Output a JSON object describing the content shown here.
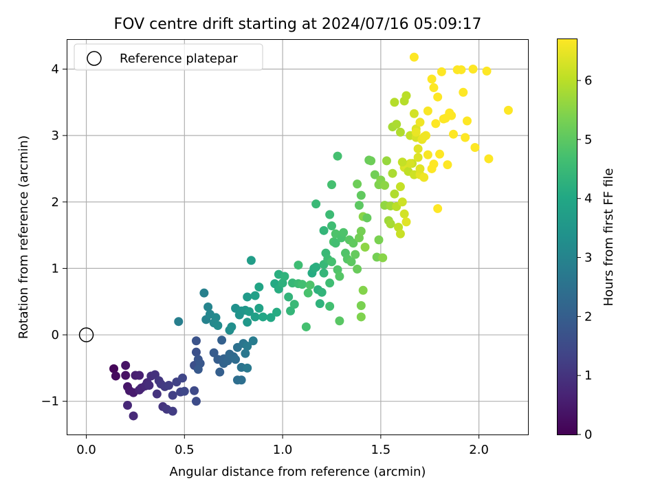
{
  "chart_data": {
    "type": "scatter",
    "title": "FOV centre drift starting at 2024/07/16 05:09:17",
    "xlabel": "Angular distance from reference (arcmin)",
    "ylabel": "Rotation from reference (arcmin)",
    "xlim": [
      -0.1,
      2.25
    ],
    "ylim": [
      -1.5,
      4.45
    ],
    "xticks": [
      0.0,
      0.5,
      1.0,
      1.5,
      2.0
    ],
    "xtick_labels": [
      "0.0",
      "0.5",
      "1.0",
      "1.5",
      "2.0"
    ],
    "yticks": [
      -1,
      0,
      1,
      2,
      3,
      4
    ],
    "ytick_labels": [
      "−1",
      "0",
      "1",
      "2",
      "3",
      "4"
    ],
    "grid": true,
    "legend": {
      "position": "top-left",
      "entries": [
        "Reference platepar"
      ]
    },
    "colorbar": {
      "label": "Hours from first FF file",
      "colormap": "viridis",
      "range": [
        0,
        6.7
      ],
      "ticks": [
        0,
        1,
        2,
        3,
        4,
        5,
        6
      ],
      "tick_labels": [
        "0",
        "1",
        "2",
        "3",
        "4",
        "5",
        "6"
      ]
    },
    "reference_point": {
      "x": 0.0,
      "y": 0.0
    },
    "series": [
      {
        "points": [
          [
            0.14,
            -0.51,
            0.1
          ],
          [
            0.15,
            -0.62,
            0.2
          ],
          [
            0.2,
            -0.61,
            0.3
          ],
          [
            0.2,
            -0.46,
            0.35
          ],
          [
            0.21,
            -0.78,
            0.4
          ],
          [
            0.22,
            -0.84,
            0.45
          ],
          [
            0.24,
            -0.87,
            0.5
          ],
          [
            0.25,
            -0.61,
            0.55
          ],
          [
            0.27,
            -0.61,
            0.6
          ],
          [
            0.27,
            -0.83,
            0.65
          ],
          [
            0.28,
            -0.8,
            0.7
          ],
          [
            0.3,
            -0.77,
            0.75
          ],
          [
            0.31,
            -0.72,
            0.8
          ],
          [
            0.32,
            -0.76,
            0.85
          ],
          [
            0.33,
            -0.62,
            0.9
          ],
          [
            0.35,
            -0.6,
            0.95
          ],
          [
            0.36,
            -0.89,
            1.0
          ],
          [
            0.37,
            -0.69,
            1.05
          ],
          [
            0.38,
            -0.74,
            1.1
          ],
          [
            0.4,
            -0.78,
            1.15
          ],
          [
            0.42,
            -0.76,
            1.2
          ],
          [
            0.44,
            -0.91,
            1.25
          ],
          [
            0.46,
            -0.71,
            1.3
          ],
          [
            0.48,
            -0.86,
            1.35
          ],
          [
            0.49,
            -0.65,
            1.4
          ],
          [
            0.5,
            -0.85,
            1.45
          ],
          [
            0.55,
            -0.84,
            1.5
          ],
          [
            0.56,
            -1.0,
            1.55
          ],
          [
            0.39,
            -1.08,
            1.0
          ],
          [
            0.41,
            -1.12,
            1.1
          ],
          [
            0.44,
            -1.15,
            1.2
          ],
          [
            0.21,
            -1.06,
            0.75
          ],
          [
            0.24,
            -1.22,
            0.8
          ],
          [
            0.55,
            -0.46,
            1.6
          ],
          [
            0.56,
            -0.26,
            1.65
          ],
          [
            0.56,
            -0.09,
            1.7
          ],
          [
            0.57,
            -0.37,
            1.75
          ],
          [
            0.58,
            -0.43,
            1.8
          ],
          [
            0.57,
            -0.52,
            1.85
          ],
          [
            0.65,
            -0.27,
            1.9
          ],
          [
            0.67,
            -0.37,
            1.95
          ],
          [
            0.68,
            -0.56,
            2.0
          ],
          [
            0.69,
            -0.08,
            2.05
          ],
          [
            0.7,
            -0.36,
            2.1
          ],
          [
            0.7,
            -0.43,
            2.15
          ],
          [
            0.72,
            -0.39,
            2.2
          ],
          [
            0.73,
            -0.29,
            2.25
          ],
          [
            0.75,
            -0.33,
            2.3
          ],
          [
            0.76,
            -0.37,
            2.35
          ],
          [
            0.77,
            -0.68,
            2.4
          ],
          [
            0.79,
            -0.68,
            2.45
          ],
          [
            0.77,
            -0.19,
            2.5
          ],
          [
            0.79,
            -0.49,
            2.55
          ],
          [
            0.8,
            -0.13,
            2.6
          ],
          [
            0.81,
            -0.28,
            2.65
          ],
          [
            0.82,
            -0.5,
            2.7
          ],
          [
            0.82,
            -0.17,
            2.75
          ],
          [
            0.85,
            -0.09,
            2.8
          ],
          [
            0.47,
            0.2,
            2.85
          ],
          [
            0.6,
            0.63,
            2.9
          ],
          [
            0.61,
            0.23,
            2.95
          ],
          [
            0.62,
            0.42,
            3.0
          ],
          [
            0.63,
            0.31,
            3.05
          ],
          [
            0.65,
            0.18,
            3.1
          ],
          [
            0.66,
            0.26,
            3.15
          ],
          [
            0.67,
            0.14,
            3.2
          ],
          [
            0.73,
            0.07,
            3.25
          ],
          [
            0.74,
            0.12,
            3.3
          ],
          [
            0.76,
            0.4,
            3.35
          ],
          [
            0.78,
            0.3,
            3.4
          ],
          [
            0.79,
            0.36,
            3.45
          ],
          [
            0.81,
            0.37,
            3.5
          ],
          [
            0.82,
            0.19,
            3.55
          ],
          [
            0.82,
            0.57,
            3.6
          ],
          [
            0.83,
            0.35,
            3.65
          ],
          [
            0.84,
            1.12,
            3.7
          ],
          [
            0.86,
            0.27,
            3.75
          ],
          [
            0.86,
            0.59,
            3.8
          ],
          [
            0.88,
            0.4,
            3.85
          ],
          [
            0.88,
            0.72,
            3.9
          ],
          [
            0.9,
            0.27,
            3.95
          ],
          [
            0.94,
            0.26,
            4.0
          ],
          [
            0.96,
            0.77,
            4.05
          ],
          [
            0.97,
            0.34,
            4.1
          ],
          [
            0.98,
            0.69,
            4.15
          ],
          [
            0.98,
            0.91,
            4.2
          ],
          [
            1.0,
            0.78,
            4.25
          ],
          [
            1.01,
            0.88,
            4.3
          ],
          [
            1.03,
            0.57,
            4.35
          ],
          [
            1.04,
            0.36,
            4.4
          ],
          [
            1.05,
            0.78,
            4.45
          ],
          [
            1.06,
            0.46,
            4.5
          ],
          [
            1.08,
            0.77,
            4.55
          ],
          [
            1.08,
            1.05,
            4.6
          ],
          [
            1.1,
            0.76,
            4.65
          ],
          [
            1.12,
            0.12,
            4.7
          ],
          [
            1.13,
            0.63,
            4.75
          ],
          [
            1.14,
            0.75,
            4.8
          ],
          [
            1.15,
            0.93,
            4.1
          ],
          [
            1.16,
            1.0,
            4.15
          ],
          [
            1.17,
            1.02,
            4.2
          ],
          [
            1.18,
            0.68,
            4.25
          ],
          [
            1.19,
            0.47,
            4.3
          ],
          [
            1.2,
            0.64,
            4.35
          ],
          [
            1.21,
            0.93,
            4.4
          ],
          [
            1.21,
            1.06,
            4.45
          ],
          [
            1.22,
            1.23,
            4.5
          ],
          [
            1.23,
            1.14,
            4.55
          ],
          [
            1.24,
            0.78,
            4.6
          ],
          [
            1.24,
            0.43,
            4.65
          ],
          [
            1.25,
            1.1,
            4.7
          ],
          [
            1.26,
            1.4,
            4.75
          ],
          [
            1.27,
            1.52,
            4.8
          ],
          [
            1.28,
            0.98,
            4.85
          ],
          [
            1.29,
            0.88,
            4.9
          ],
          [
            1.29,
            0.21,
            4.95
          ],
          [
            1.21,
            1.57,
            4.4
          ],
          [
            1.17,
            1.97,
            4.5
          ],
          [
            1.24,
            1.81,
            4.55
          ],
          [
            1.25,
            1.64,
            4.6
          ],
          [
            1.27,
            1.38,
            4.65
          ],
          [
            1.28,
            2.69,
            4.7
          ],
          [
            1.3,
            1.46,
            4.75
          ],
          [
            1.31,
            1.54,
            4.8
          ],
          [
            1.32,
            1.23,
            4.85
          ],
          [
            1.33,
            1.14,
            4.9
          ],
          [
            1.34,
            1.43,
            4.95
          ],
          [
            1.35,
            1.1,
            5.0
          ],
          [
            1.36,
            1.38,
            5.05
          ],
          [
            1.37,
            1.21,
            5.1
          ],
          [
            1.38,
            0.99,
            5.15
          ],
          [
            1.38,
            2.27,
            5.2
          ],
          [
            1.39,
            1.46,
            5.25
          ],
          [
            1.4,
            1.56,
            5.3
          ],
          [
            1.4,
            0.44,
            5.35
          ],
          [
            1.4,
            0.27,
            5.4
          ],
          [
            1.41,
            0.67,
            5.45
          ],
          [
            1.41,
            1.78,
            5.5
          ],
          [
            1.42,
            1.32,
            5.55
          ],
          [
            1.25,
            2.26,
            4.7
          ],
          [
            1.39,
            1.95,
            5.0
          ],
          [
            1.4,
            2.1,
            5.05
          ],
          [
            1.43,
            1.76,
            5.1
          ],
          [
            1.44,
            2.63,
            5.15
          ],
          [
            1.45,
            2.62,
            5.2
          ],
          [
            1.47,
            2.41,
            5.25
          ],
          [
            1.48,
            1.17,
            5.3
          ],
          [
            1.49,
            1.43,
            5.35
          ],
          [
            1.49,
            2.26,
            5.4
          ],
          [
            1.5,
            2.33,
            5.45
          ],
          [
            1.51,
            1.16,
            5.5
          ],
          [
            1.52,
            2.25,
            5.55
          ],
          [
            1.52,
            1.95,
            5.6
          ],
          [
            1.53,
            2.62,
            5.65
          ],
          [
            1.54,
            1.72,
            5.7
          ],
          [
            1.55,
            1.94,
            5.75
          ],
          [
            1.55,
            1.67,
            5.8
          ],
          [
            1.56,
            2.43,
            5.85
          ],
          [
            1.57,
            2.12,
            5.9
          ],
          [
            1.57,
            3.5,
            5.95
          ],
          [
            1.58,
            1.93,
            6.0
          ],
          [
            1.59,
            1.62,
            6.05
          ],
          [
            1.6,
            2.23,
            6.1
          ],
          [
            1.6,
            1.52,
            6.15
          ],
          [
            1.61,
            2.0,
            6.2
          ],
          [
            1.62,
            1.82,
            6.25
          ],
          [
            1.62,
            2.52,
            6.3
          ],
          [
            1.63,
            2.55,
            6.35
          ],
          [
            1.63,
            1.7,
            6.4
          ],
          [
            1.56,
            3.13,
            5.8
          ],
          [
            1.58,
            3.17,
            5.85
          ],
          [
            1.6,
            3.05,
            5.9
          ],
          [
            1.62,
            3.52,
            5.95
          ],
          [
            1.63,
            3.6,
            6.0
          ],
          [
            1.64,
            2.46,
            6.05
          ],
          [
            1.65,
            3.0,
            6.1
          ],
          [
            1.66,
            2.58,
            6.15
          ],
          [
            1.67,
            2.41,
            6.2
          ],
          [
            1.67,
            3.33,
            6.25
          ],
          [
            1.68,
            2.97,
            6.3
          ],
          [
            1.68,
            3.1,
            6.35
          ],
          [
            1.69,
            2.8,
            6.4
          ],
          [
            1.7,
            2.41,
            6.45
          ],
          [
            1.71,
            2.94,
            6.5
          ],
          [
            1.72,
            2.37,
            6.55
          ],
          [
            1.73,
            3.0,
            6.6
          ],
          [
            1.74,
            2.71,
            6.65
          ],
          [
            1.76,
            2.5,
            6.7
          ],
          [
            1.77,
            2.57,
            6.7
          ],
          [
            1.78,
            3.18,
            6.7
          ],
          [
            1.79,
            1.9,
            6.7
          ],
          [
            1.8,
            2.72,
            6.7
          ],
          [
            1.82,
            3.25,
            6.7
          ],
          [
            1.84,
            2.56,
            6.7
          ],
          [
            1.85,
            3.34,
            6.7
          ],
          [
            1.86,
            3.3,
            6.7
          ],
          [
            1.87,
            3.02,
            6.7
          ],
          [
            1.89,
            3.99,
            6.7
          ],
          [
            1.91,
            3.99,
            6.7
          ],
          [
            1.92,
            3.65,
            6.7
          ],
          [
            1.93,
            2.97,
            6.7
          ],
          [
            1.94,
            3.22,
            6.7
          ],
          [
            1.97,
            4.0,
            6.7
          ],
          [
            1.98,
            2.82,
            6.7
          ],
          [
            2.04,
            3.97,
            6.7
          ],
          [
            2.05,
            2.65,
            6.7
          ],
          [
            2.15,
            3.38,
            6.7
          ],
          [
            1.67,
            4.18,
            6.7
          ],
          [
            1.76,
            3.85,
            6.7
          ],
          [
            1.79,
            3.58,
            6.7
          ],
          [
            1.81,
            3.96,
            6.7
          ],
          [
            1.77,
            3.72,
            6.7
          ],
          [
            1.83,
            3.26,
            6.7
          ],
          [
            1.74,
            3.37,
            6.65
          ],
          [
            1.7,
            3.2,
            6.55
          ],
          [
            1.68,
            3.05,
            6.5
          ],
          [
            1.65,
            2.58,
            6.3
          ],
          [
            1.72,
            2.98,
            6.55
          ],
          [
            1.69,
            2.67,
            6.35
          ],
          [
            1.61,
            2.6,
            6.1
          ],
          [
            1.7,
            2.5,
            6.4
          ]
        ]
      }
    ]
  }
}
